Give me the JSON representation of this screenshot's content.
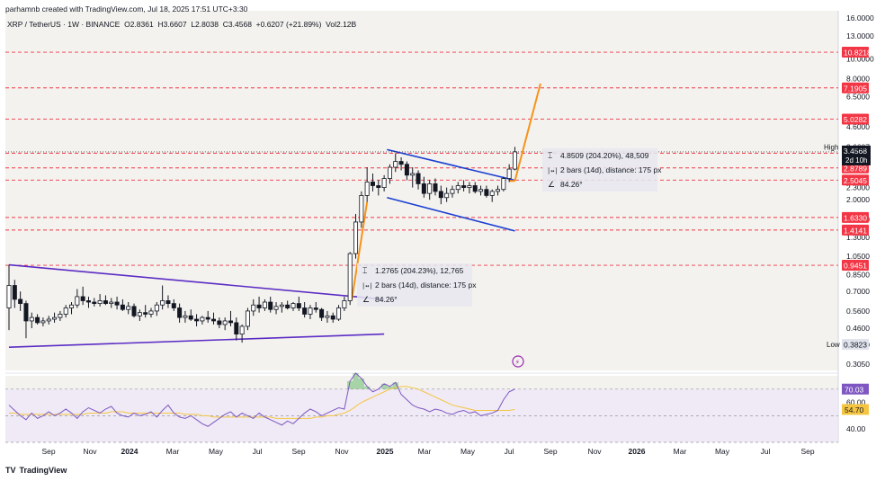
{
  "header": {
    "attribution": "parhamnb created with TradingView.com, Jul 18, 2025 17:51 UTC+3:30"
  },
  "symbol": {
    "name": "XRP / TetherUS · 1W · BINANCE",
    "open": "O2.8361",
    "high": "H3.6607",
    "low": "L2.8038",
    "close": "C3.4568",
    "change": "+0.6207 (+21.89%)",
    "volume": "Vol2.12B"
  },
  "brand": {
    "name": "TradingView",
    "logo": "TV"
  },
  "chart_data": {
    "type": "candlestick",
    "y_scale": "log",
    "price_axis_labels": [
      "16.0000",
      "13.0000",
      "10.0000",
      "8.0000",
      "6.5000",
      "4.6000",
      "3.6000",
      "2.3000",
      "2.0000",
      "1.6000",
      "1.3000",
      "1.0500",
      "0.8500",
      "0.7000",
      "0.5600",
      "0.4600",
      "0.3800",
      "0.3050"
    ],
    "time_axis_labels": [
      "Sep",
      "Nov",
      "2024",
      "Mar",
      "May",
      "Jul",
      "Sep",
      "Nov",
      "2025",
      "Mar",
      "May",
      "Jul",
      "Sep",
      "Nov",
      "2026",
      "Mar",
      "May",
      "Jul",
      "Sep"
    ],
    "horizontal_levels": [
      {
        "value": "10.8218",
        "color": "#f23645"
      },
      {
        "value": "7.1905",
        "color": "#f23645"
      },
      {
        "value": "5.0282",
        "color": "#f23645"
      },
      {
        "value": "3.4073",
        "color": "#f23645"
      },
      {
        "value": "2.8789",
        "color": "#f23645"
      },
      {
        "value": "2.5045",
        "color": "#f23645"
      },
      {
        "value": "1.6330",
        "color": "#f23645"
      },
      {
        "value": "1.4141",
        "color": "#f23645"
      },
      {
        "value": "0.9451",
        "color": "#f23645"
      }
    ],
    "current_price": {
      "value": "3.4568",
      "countdown": "2d 10h"
    },
    "high_marker": {
      "label": "High",
      "value": "3.6607"
    },
    "low_marker": {
      "label": "Low",
      "value": "0.3823"
    },
    "candles": [
      {
        "o": 0.58,
        "h": 0.95,
        "l": 0.45,
        "c": 0.75
      },
      {
        "o": 0.75,
        "h": 0.8,
        "l": 0.58,
        "c": 0.64
      },
      {
        "o": 0.64,
        "h": 0.7,
        "l": 0.56,
        "c": 0.61
      },
      {
        "o": 0.61,
        "h": 0.63,
        "l": 0.41,
        "c": 0.5
      },
      {
        "o": 0.5,
        "h": 0.55,
        "l": 0.46,
        "c": 0.52
      },
      {
        "o": 0.52,
        "h": 0.54,
        "l": 0.48,
        "c": 0.49
      },
      {
        "o": 0.49,
        "h": 0.52,
        "l": 0.47,
        "c": 0.5
      },
      {
        "o": 0.5,
        "h": 0.53,
        "l": 0.48,
        "c": 0.51
      },
      {
        "o": 0.51,
        "h": 0.55,
        "l": 0.49,
        "c": 0.52
      },
      {
        "o": 0.52,
        "h": 0.56,
        "l": 0.5,
        "c": 0.54
      },
      {
        "o": 0.54,
        "h": 0.6,
        "l": 0.52,
        "c": 0.58
      },
      {
        "o": 0.58,
        "h": 0.62,
        "l": 0.54,
        "c": 0.6
      },
      {
        "o": 0.6,
        "h": 0.72,
        "l": 0.58,
        "c": 0.66
      },
      {
        "o": 0.66,
        "h": 0.74,
        "l": 0.6,
        "c": 0.63
      },
      {
        "o": 0.63,
        "h": 0.66,
        "l": 0.58,
        "c": 0.62
      },
      {
        "o": 0.62,
        "h": 0.65,
        "l": 0.59,
        "c": 0.61
      },
      {
        "o": 0.61,
        "h": 0.68,
        "l": 0.59,
        "c": 0.63
      },
      {
        "o": 0.63,
        "h": 0.67,
        "l": 0.6,
        "c": 0.61
      },
      {
        "o": 0.61,
        "h": 0.65,
        "l": 0.58,
        "c": 0.62
      },
      {
        "o": 0.62,
        "h": 0.66,
        "l": 0.57,
        "c": 0.6
      },
      {
        "o": 0.6,
        "h": 0.64,
        "l": 0.56,
        "c": 0.57
      },
      {
        "o": 0.57,
        "h": 0.62,
        "l": 0.54,
        "c": 0.59
      },
      {
        "o": 0.59,
        "h": 0.61,
        "l": 0.52,
        "c": 0.53
      },
      {
        "o": 0.53,
        "h": 0.57,
        "l": 0.5,
        "c": 0.55
      },
      {
        "o": 0.55,
        "h": 0.6,
        "l": 0.52,
        "c": 0.54
      },
      {
        "o": 0.54,
        "h": 0.58,
        "l": 0.52,
        "c": 0.56
      },
      {
        "o": 0.56,
        "h": 0.62,
        "l": 0.53,
        "c": 0.6
      },
      {
        "o": 0.6,
        "h": 0.75,
        "l": 0.57,
        "c": 0.63
      },
      {
        "o": 0.63,
        "h": 0.67,
        "l": 0.58,
        "c": 0.61
      },
      {
        "o": 0.61,
        "h": 0.64,
        "l": 0.56,
        "c": 0.58
      },
      {
        "o": 0.58,
        "h": 0.61,
        "l": 0.49,
        "c": 0.52
      },
      {
        "o": 0.52,
        "h": 0.56,
        "l": 0.49,
        "c": 0.53
      },
      {
        "o": 0.53,
        "h": 0.57,
        "l": 0.5,
        "c": 0.51
      },
      {
        "o": 0.51,
        "h": 0.54,
        "l": 0.47,
        "c": 0.5
      },
      {
        "o": 0.5,
        "h": 0.53,
        "l": 0.48,
        "c": 0.52
      },
      {
        "o": 0.52,
        "h": 0.56,
        "l": 0.49,
        "c": 0.51
      },
      {
        "o": 0.51,
        "h": 0.55,
        "l": 0.48,
        "c": 0.5
      },
      {
        "o": 0.5,
        "h": 0.52,
        "l": 0.46,
        "c": 0.48
      },
      {
        "o": 0.48,
        "h": 0.52,
        "l": 0.45,
        "c": 0.5
      },
      {
        "o": 0.5,
        "h": 0.56,
        "l": 0.47,
        "c": 0.49
      },
      {
        "o": 0.49,
        "h": 0.52,
        "l": 0.4,
        "c": 0.43
      },
      {
        "o": 0.43,
        "h": 0.48,
        "l": 0.39,
        "c": 0.47
      },
      {
        "o": 0.47,
        "h": 0.58,
        "l": 0.45,
        "c": 0.56
      },
      {
        "o": 0.56,
        "h": 0.64,
        "l": 0.53,
        "c": 0.6
      },
      {
        "o": 0.6,
        "h": 0.66,
        "l": 0.55,
        "c": 0.58
      },
      {
        "o": 0.58,
        "h": 0.64,
        "l": 0.56,
        "c": 0.62
      },
      {
        "o": 0.62,
        "h": 0.66,
        "l": 0.55,
        "c": 0.57
      },
      {
        "o": 0.57,
        "h": 0.62,
        "l": 0.54,
        "c": 0.59
      },
      {
        "o": 0.59,
        "h": 0.62,
        "l": 0.55,
        "c": 0.6
      },
      {
        "o": 0.6,
        "h": 0.63,
        "l": 0.57,
        "c": 0.58
      },
      {
        "o": 0.58,
        "h": 0.62,
        "l": 0.56,
        "c": 0.61
      },
      {
        "o": 0.61,
        "h": 0.66,
        "l": 0.56,
        "c": 0.58
      },
      {
        "o": 0.58,
        "h": 0.62,
        "l": 0.52,
        "c": 0.54
      },
      {
        "o": 0.54,
        "h": 0.6,
        "l": 0.51,
        "c": 0.58
      },
      {
        "o": 0.58,
        "h": 0.62,
        "l": 0.55,
        "c": 0.57
      },
      {
        "o": 0.57,
        "h": 0.58,
        "l": 0.5,
        "c": 0.52
      },
      {
        "o": 0.52,
        "h": 0.56,
        "l": 0.49,
        "c": 0.53
      },
      {
        "o": 0.53,
        "h": 0.55,
        "l": 0.49,
        "c": 0.51
      },
      {
        "o": 0.51,
        "h": 0.6,
        "l": 0.5,
        "c": 0.58
      },
      {
        "o": 0.58,
        "h": 0.66,
        "l": 0.56,
        "c": 0.63
      },
      {
        "o": 0.63,
        "h": 1.1,
        "l": 0.6,
        "c": 1.08
      },
      {
        "o": 1.08,
        "h": 1.7,
        "l": 1.02,
        "c": 1.55
      },
      {
        "o": 1.55,
        "h": 2.2,
        "l": 1.45,
        "c": 2.1
      },
      {
        "o": 2.1,
        "h": 2.9,
        "l": 1.95,
        "c": 2.45
      },
      {
        "o": 2.45,
        "h": 2.7,
        "l": 2.2,
        "c": 2.35
      },
      {
        "o": 2.35,
        "h": 2.5,
        "l": 2.1,
        "c": 2.3
      },
      {
        "o": 2.3,
        "h": 2.65,
        "l": 2.2,
        "c": 2.55
      },
      {
        "o": 2.55,
        "h": 3.0,
        "l": 2.4,
        "c": 2.9
      },
      {
        "o": 2.9,
        "h": 3.4,
        "l": 2.75,
        "c": 3.1
      },
      {
        "o": 3.1,
        "h": 3.25,
        "l": 2.8,
        "c": 3.0
      },
      {
        "o": 3.0,
        "h": 3.1,
        "l": 2.5,
        "c": 2.65
      },
      {
        "o": 2.65,
        "h": 2.9,
        "l": 2.3,
        "c": 2.7
      },
      {
        "o": 2.7,
        "h": 2.8,
        "l": 2.25,
        "c": 2.4
      },
      {
        "o": 2.4,
        "h": 2.6,
        "l": 2.05,
        "c": 2.15
      },
      {
        "o": 2.15,
        "h": 2.5,
        "l": 2.0,
        "c": 2.4
      },
      {
        "o": 2.4,
        "h": 2.55,
        "l": 2.1,
        "c": 2.2
      },
      {
        "o": 2.2,
        "h": 2.35,
        "l": 1.9,
        "c": 2.05
      },
      {
        "o": 2.05,
        "h": 2.3,
        "l": 1.95,
        "c": 2.15
      },
      {
        "o": 2.15,
        "h": 2.35,
        "l": 2.05,
        "c": 2.25
      },
      {
        "o": 2.25,
        "h": 2.45,
        "l": 2.15,
        "c": 2.35
      },
      {
        "o": 2.35,
        "h": 2.5,
        "l": 2.2,
        "c": 2.3
      },
      {
        "o": 2.3,
        "h": 2.45,
        "l": 2.15,
        "c": 2.35
      },
      {
        "o": 2.35,
        "h": 2.45,
        "l": 2.15,
        "c": 2.2
      },
      {
        "o": 2.2,
        "h": 2.35,
        "l": 2.1,
        "c": 2.25
      },
      {
        "o": 2.25,
        "h": 2.35,
        "l": 2.05,
        "c": 2.1
      },
      {
        "o": 2.1,
        "h": 2.25,
        "l": 1.95,
        "c": 2.2
      },
      {
        "o": 2.2,
        "h": 2.35,
        "l": 2.1,
        "c": 2.25
      },
      {
        "o": 2.25,
        "h": 2.6,
        "l": 2.2,
        "c": 2.55
      },
      {
        "o": 2.55,
        "h": 3.0,
        "l": 2.45,
        "c": 2.84
      },
      {
        "o": 2.84,
        "h": 3.66,
        "l": 2.8,
        "c": 3.46
      }
    ],
    "drawings": [
      {
        "name": "lower-channel",
        "color": "#5b2cc4",
        "lines": [
          {
            "from": [
              "Jul 2023",
              0.95
            ],
            "to": [
              "Nov 2024",
              0.64
            ]
          },
          {
            "from": [
              "Jul 2023",
              0.37
            ],
            "to": [
              "Nov 2024",
              0.43
            ]
          }
        ]
      },
      {
        "name": "upper-flag",
        "color": "#1a3fd1",
        "lines": [
          {
            "from": [
              "Dec 2024",
              3.55
            ],
            "to": [
              "Jul 2025",
              2.5
            ]
          },
          {
            "from": [
              "Dec 2024",
              2.05
            ],
            "to": [
              "Jul 2025",
              1.4
            ]
          }
        ]
      },
      {
        "name": "projection",
        "color": "#f7931a",
        "from": [
          "Jul 2025",
          2.48
        ],
        "to": [
          "Aug 2025",
          7.55
        ]
      }
    ],
    "annotations": [
      {
        "name": "lower-measure",
        "price": "1.2765 (204.23%), 12,765",
        "bars": "2 bars (14d), distance: 175 px",
        "angle": "84.26°"
      },
      {
        "name": "upper-measure",
        "price": "4.8509 (204.20%), 48,509",
        "bars": "2 bars (14d), distance: 175 px",
        "angle": "84.26°"
      }
    ],
    "rsi": {
      "axis_labels": [
        "70.03",
        "60.00",
        "54.70",
        "40.00"
      ],
      "overbought": 70,
      "oversold": 30,
      "rsi_value": "70.03",
      "ma_value": "54.70",
      "rsi_line": [
        58,
        54,
        50,
        47,
        52,
        48,
        50,
        53,
        50,
        52,
        55,
        52,
        48,
        53,
        56,
        54,
        52,
        55,
        57,
        52,
        50,
        49,
        52,
        50,
        51,
        53,
        49,
        54,
        58,
        52,
        49,
        48,
        50,
        47,
        44,
        42,
        45,
        48,
        51,
        53,
        49,
        52,
        50,
        48,
        52,
        49,
        47,
        45,
        43,
        46,
        44,
        48,
        52,
        55,
        53,
        50,
        52,
        54,
        56,
        55,
        76,
        82,
        78,
        72,
        68,
        70,
        74,
        72,
        75,
        66,
        62,
        58,
        56,
        55,
        53,
        55,
        54,
        52,
        51,
        53,
        54,
        52,
        53,
        50,
        51,
        52,
        54,
        62,
        68,
        70.03
      ],
      "ma_line": [
        52,
        52,
        51,
        51,
        51,
        51,
        51,
        51,
        51,
        51,
        51,
        51,
        51,
        51,
        52,
        52,
        52,
        52,
        53,
        53,
        53,
        52,
        52,
        52,
        52,
        52,
        52,
        52,
        52,
        52,
        52,
        51,
        51,
        51,
        50,
        50,
        49,
        49,
        49,
        49,
        49,
        49,
        49,
        49,
        49,
        49,
        49,
        48,
        48,
        48,
        48,
        48,
        48,
        48,
        49,
        49,
        50,
        50,
        51,
        52,
        54,
        57,
        60,
        62,
        64,
        66,
        68,
        70,
        71,
        72,
        72,
        71,
        70,
        68,
        66,
        64,
        62,
        60,
        58,
        57,
        56,
        55,
        54,
        54,
        54,
        54,
        54,
        54,
        54,
        54.7
      ]
    },
    "grid": true
  },
  "icons": {
    "flash-icon": "⚡"
  }
}
